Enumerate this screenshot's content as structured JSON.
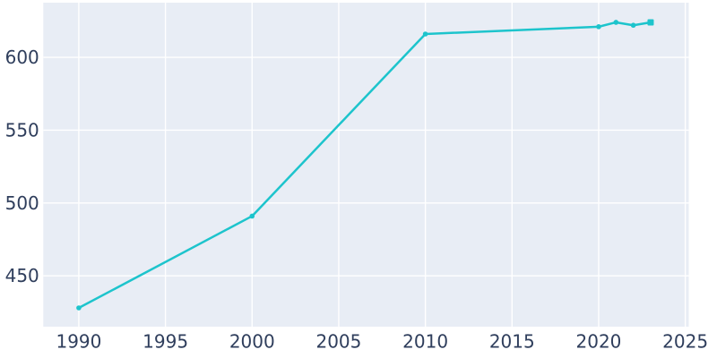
{
  "chart_data": {
    "type": "line",
    "series_name": "population",
    "title": "",
    "xlabel": "",
    "ylabel": "",
    "x": [
      1990,
      2000,
      2010,
      2020,
      2021,
      2022,
      2023
    ],
    "values": [
      428,
      491,
      616,
      621,
      624,
      622,
      624
    ],
    "x_ticks": [
      1990,
      1995,
      2000,
      2005,
      2010,
      2015,
      2020,
      2025
    ],
    "y_ticks": [
      450,
      500,
      550,
      600
    ],
    "xlim": [
      1987.95,
      2025.2
    ],
    "ylim": [
      415.1,
      637.5
    ],
    "grid": true,
    "legend": false,
    "marker": "point",
    "last_marker": "square",
    "colors": {
      "line": "#1dc4cc",
      "marker": "#1dc4cc",
      "plot_background": "#e8edf5",
      "figure_background": "#ffffff",
      "gridline": "#ffffff",
      "tick_label": "#2f3e5c"
    },
    "tick_font_size": 20
  }
}
